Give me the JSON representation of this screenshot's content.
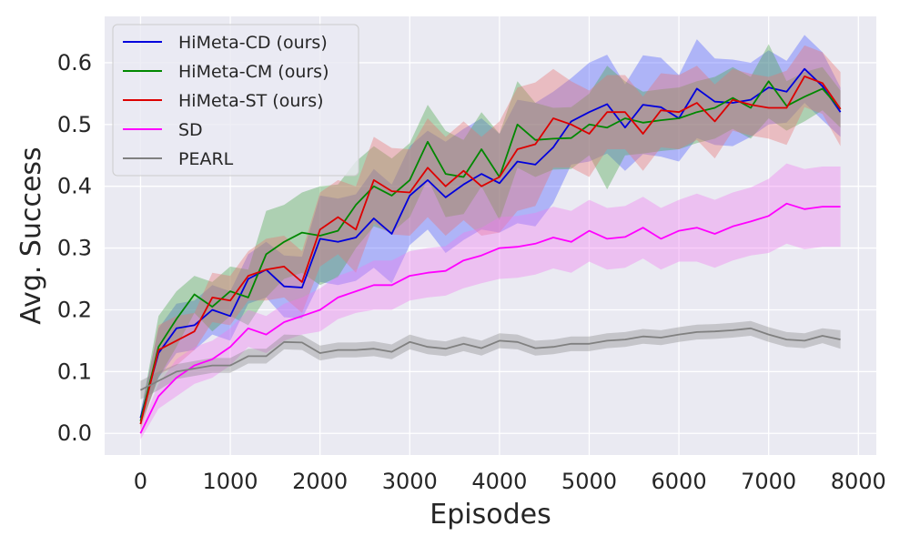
{
  "chart_data": {
    "type": "line",
    "title": "",
    "xlabel": "Episodes",
    "ylabel": "Avg. Success",
    "xlim": [
      -400,
      8200
    ],
    "ylim": [
      -0.035,
      0.675
    ],
    "xticks": [
      0,
      1000,
      2000,
      3000,
      4000,
      5000,
      6000,
      7000,
      8000
    ],
    "xtick_labels": [
      "0",
      "1000",
      "2000",
      "3000",
      "4000",
      "5000",
      "6000",
      "7000",
      "8000"
    ],
    "yticks": [
      0.0,
      0.1,
      0.2,
      0.3,
      0.4,
      0.5,
      0.6
    ],
    "ytick_labels": [
      "0.0",
      "0.1",
      "0.2",
      "0.3",
      "0.4",
      "0.5",
      "0.6"
    ],
    "grid": true,
    "legend_position": "top-left",
    "x": [
      0,
      200,
      400,
      600,
      800,
      1000,
      1200,
      1400,
      1600,
      1800,
      2000,
      2200,
      2400,
      2600,
      2800,
      3000,
      3200,
      3400,
      3600,
      3800,
      4000,
      4200,
      4400,
      4600,
      4800,
      5000,
      5200,
      5400,
      5600,
      5800,
      6000,
      6200,
      6400,
      6600,
      6800,
      7000,
      7200,
      7400,
      7600,
      7800
    ],
    "series": [
      {
        "name": "HiMeta-CD (ours)",
        "color": "#0000dd",
        "band_color": "#4c5cff",
        "values": [
          0.025,
          0.13,
          0.17,
          0.175,
          0.2,
          0.19,
          0.25,
          0.265,
          0.238,
          0.236,
          0.315,
          0.31,
          0.317,
          0.348,
          0.323,
          0.385,
          0.41,
          0.382,
          0.403,
          0.42,
          0.405,
          0.44,
          0.435,
          0.463,
          0.505,
          0.52,
          0.533,
          0.495,
          0.532,
          0.528,
          0.51,
          0.558,
          0.537,
          0.535,
          0.54,
          0.56,
          0.553,
          0.59,
          0.562,
          0.52
        ],
        "band_halfwidth": [
          0.01,
          0.04,
          0.04,
          0.04,
          0.04,
          0.04,
          0.04,
          0.045,
          0.05,
          0.05,
          0.07,
          0.07,
          0.07,
          0.08,
          0.08,
          0.08,
          0.08,
          0.09,
          0.09,
          0.09,
          0.08,
          0.1,
          0.1,
          0.09,
          0.07,
          0.08,
          0.08,
          0.07,
          0.08,
          0.08,
          0.07,
          0.08,
          0.07,
          0.07,
          0.06,
          0.06,
          0.05,
          0.055,
          0.055,
          0.04
        ]
      },
      {
        "name": "HiMeta-CM (ours)",
        "color": "#008800",
        "band_color": "#4aa54a",
        "values": [
          0.02,
          0.14,
          0.185,
          0.225,
          0.205,
          0.23,
          0.22,
          0.29,
          0.31,
          0.325,
          0.32,
          0.328,
          0.37,
          0.4,
          0.385,
          0.41,
          0.472,
          0.42,
          0.415,
          0.46,
          0.415,
          0.5,
          0.475,
          0.477,
          0.478,
          0.5,
          0.495,
          0.51,
          0.503,
          0.507,
          0.51,
          0.52,
          0.527,
          0.543,
          0.527,
          0.57,
          0.53,
          0.545,
          0.558,
          0.525
        ],
        "band_halfwidth": [
          0.01,
          0.05,
          0.045,
          0.03,
          0.04,
          0.04,
          0.045,
          0.07,
          0.06,
          0.065,
          0.08,
          0.075,
          0.07,
          0.065,
          0.06,
          0.06,
          0.06,
          0.07,
          0.06,
          0.06,
          0.07,
          0.07,
          0.06,
          0.05,
          0.05,
          0.05,
          0.1,
          0.06,
          0.05,
          0.05,
          0.05,
          0.05,
          0.05,
          0.05,
          0.05,
          0.06,
          0.04,
          0.04,
          0.035,
          0.03
        ]
      },
      {
        "name": "HiMeta-ST (ours)",
        "color": "#dd0000",
        "band_color": "#e87070",
        "values": [
          0.015,
          0.135,
          0.15,
          0.165,
          0.22,
          0.215,
          0.255,
          0.265,
          0.27,
          0.245,
          0.33,
          0.35,
          0.33,
          0.41,
          0.392,
          0.39,
          0.43,
          0.4,
          0.425,
          0.4,
          0.415,
          0.46,
          0.468,
          0.51,
          0.5,
          0.485,
          0.52,
          0.52,
          0.485,
          0.523,
          0.52,
          0.535,
          0.505,
          0.54,
          0.532,
          0.527,
          0.527,
          0.578,
          0.567,
          0.525
        ],
        "band_halfwidth": [
          0.01,
          0.04,
          0.04,
          0.03,
          0.04,
          0.04,
          0.04,
          0.05,
          0.05,
          0.05,
          0.06,
          0.06,
          0.07,
          0.07,
          0.07,
          0.07,
          0.08,
          0.08,
          0.08,
          0.08,
          0.09,
          0.1,
          0.1,
          0.08,
          0.07,
          0.07,
          0.06,
          0.06,
          0.06,
          0.06,
          0.06,
          0.06,
          0.06,
          0.05,
          0.05,
          0.05,
          0.06,
          0.05,
          0.05,
          0.06
        ]
      },
      {
        "name": "SD",
        "color": "#ff00ff",
        "band_color": "#ee7bee",
        "values": [
          0.0,
          0.06,
          0.09,
          0.11,
          0.12,
          0.14,
          0.17,
          0.16,
          0.18,
          0.19,
          0.2,
          0.22,
          0.23,
          0.24,
          0.24,
          0.255,
          0.26,
          0.263,
          0.28,
          0.288,
          0.3,
          0.302,
          0.307,
          0.317,
          0.31,
          0.328,
          0.315,
          0.318,
          0.333,
          0.315,
          0.328,
          0.333,
          0.323,
          0.335,
          0.343,
          0.352,
          0.372,
          0.363,
          0.367,
          0.367
        ],
        "band_halfwidth": [
          0.01,
          0.02,
          0.03,
          0.03,
          0.03,
          0.03,
          0.03,
          0.03,
          0.03,
          0.03,
          0.035,
          0.035,
          0.035,
          0.04,
          0.04,
          0.04,
          0.04,
          0.04,
          0.045,
          0.045,
          0.05,
          0.05,
          0.05,
          0.05,
          0.05,
          0.05,
          0.05,
          0.05,
          0.05,
          0.05,
          0.05,
          0.055,
          0.055,
          0.055,
          0.055,
          0.06,
          0.065,
          0.065,
          0.065,
          0.065
        ]
      },
      {
        "name": "PEARL",
        "color": "#808080",
        "band_color": "#8a8a8a",
        "values": [
          0.07,
          0.085,
          0.1,
          0.105,
          0.11,
          0.11,
          0.125,
          0.125,
          0.148,
          0.147,
          0.13,
          0.135,
          0.135,
          0.137,
          0.132,
          0.148,
          0.14,
          0.137,
          0.145,
          0.138,
          0.15,
          0.148,
          0.138,
          0.14,
          0.145,
          0.145,
          0.15,
          0.152,
          0.157,
          0.155,
          0.16,
          0.164,
          0.165,
          0.167,
          0.17,
          0.16,
          0.152,
          0.15,
          0.158,
          0.152
        ],
        "band_halfwidth": [
          0.015,
          0.015,
          0.012,
          0.012,
          0.012,
          0.012,
          0.012,
          0.012,
          0.012,
          0.012,
          0.012,
          0.012,
          0.012,
          0.012,
          0.012,
          0.012,
          0.012,
          0.012,
          0.012,
          0.012,
          0.012,
          0.012,
          0.012,
          0.012,
          0.012,
          0.012,
          0.012,
          0.012,
          0.012,
          0.012,
          0.012,
          0.012,
          0.012,
          0.012,
          0.012,
          0.012,
          0.012,
          0.012,
          0.012,
          0.015
        ]
      }
    ]
  }
}
